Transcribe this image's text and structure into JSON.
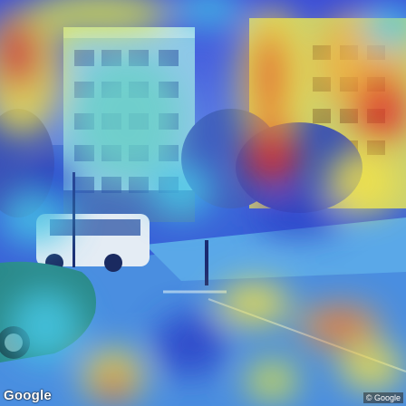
{
  "image": {
    "description_visible": false,
    "overlay": "heatmap"
  },
  "watermark": {
    "logo": "Google",
    "copyright": "© Google"
  },
  "colors": {
    "sky": "#2f5bd6",
    "heat_red": "#e2322a",
    "heat_yellow": "#f2e24a",
    "heat_cyan": "#46c8e6",
    "heat_blue": "#2a3fc8"
  }
}
